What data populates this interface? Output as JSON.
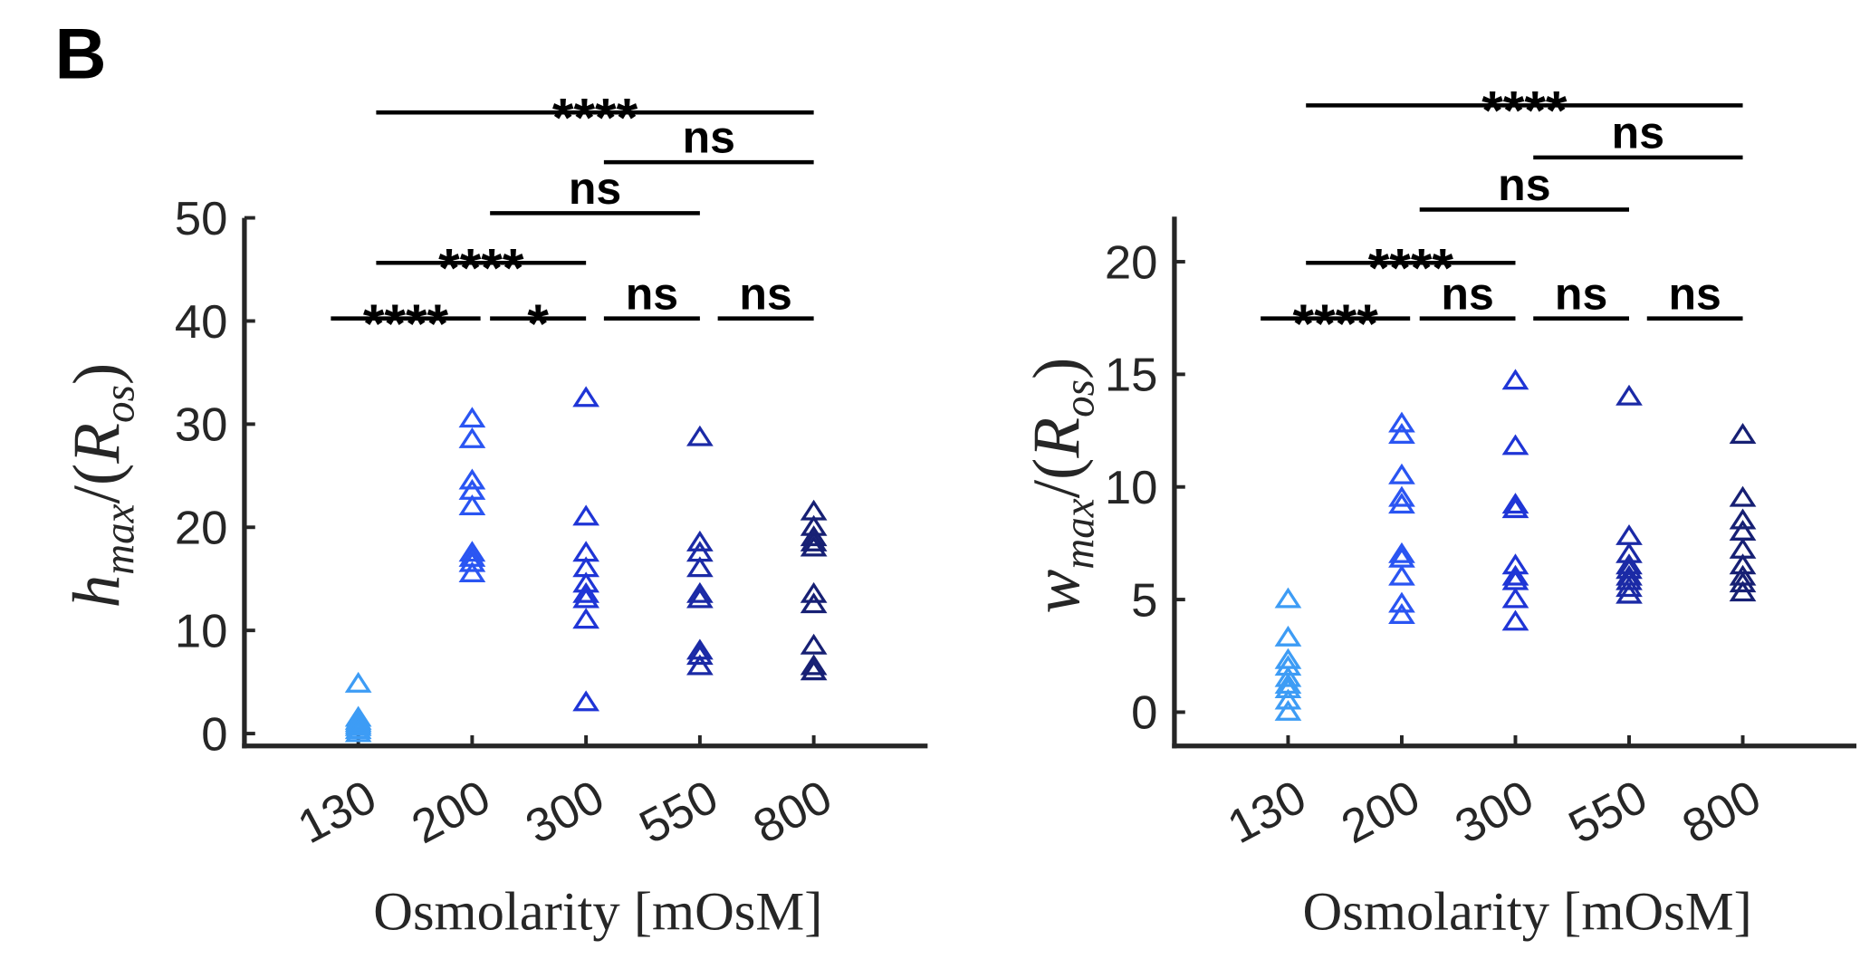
{
  "panel_label": "B",
  "chart_data": [
    {
      "type": "scatter",
      "ylabel": [
        "h",
        "max",
        "/(",
        "R",
        "os",
        ")"
      ],
      "xlabel": "Osmolarity [mOsM]",
      "categories": [
        "130",
        "200",
        "300",
        "550",
        "800"
      ],
      "colors": [
        "#3d9cf5",
        "#2a55f2",
        "#1f35d6",
        "#1b2aa6",
        "#172074"
      ],
      "points": [
        [
          4.8,
          1.5,
          1.2,
          1.0,
          0.6,
          0.3,
          0,
          0.8
        ],
        [
          30.5,
          28.5,
          24.5,
          23.5,
          22,
          17.5,
          17,
          16.5,
          15.5
        ],
        [
          32.5,
          21,
          17.5,
          16,
          14.5,
          13.5,
          13,
          11,
          3
        ],
        [
          28.7,
          18.5,
          17.5,
          16,
          13.5,
          13,
          8,
          7.5,
          6.5
        ],
        [
          21.5,
          20,
          19,
          18.5,
          18,
          13.5,
          12.5,
          8.5,
          6.5,
          6
        ]
      ],
      "ylim": [
        -1.2,
        50
      ],
      "yticks": [
        0,
        10,
        20,
        30,
        40,
        50
      ],
      "significance": [
        {
          "from": 0,
          "to": 1,
          "label": "****"
        },
        {
          "from": 1,
          "to": 2,
          "label": "*"
        },
        {
          "from": 2,
          "to": 3,
          "label": "ns"
        },
        {
          "from": 3,
          "to": 4,
          "label": "ns"
        },
        {
          "from": 0,
          "to": 2,
          "label": "****"
        },
        {
          "from": 1,
          "to": 3,
          "label": "ns"
        },
        {
          "from": 2,
          "to": 4,
          "label": "ns"
        },
        {
          "from": 0,
          "to": 4,
          "label": "****"
        }
      ]
    },
    {
      "type": "scatter",
      "ylabel": [
        "w",
        "max",
        "/(",
        "R",
        "os",
        ")"
      ],
      "xlabel": "Osmolarity [mOsM]",
      "categories": [
        "130",
        "200",
        "300",
        "550",
        "800"
      ],
      "colors": [
        "#3d9cf5",
        "#2a55f2",
        "#1f35d6",
        "#1b2aa6",
        "#172074"
      ],
      "points": [
        [
          5,
          3.3,
          2.3,
          2,
          1.5,
          1.2,
          1,
          0.5,
          0
        ],
        [
          12.8,
          12.3,
          10.5,
          9.5,
          9.2,
          7,
          6.8,
          6,
          4.8,
          4.3
        ],
        [
          14.7,
          11.8,
          9.2,
          9,
          6.5,
          6,
          5.8,
          5,
          4
        ],
        [
          14,
          7.8,
          7,
          6.5,
          6.3,
          6,
          5.8,
          5.5,
          5.2
        ],
        [
          12.3,
          9.5,
          8.5,
          8,
          7.2,
          6.5,
          6,
          5.7,
          5.3
        ]
      ],
      "ylim": [
        -1.5,
        22
      ],
      "yticks": [
        0,
        5,
        10,
        15,
        20
      ],
      "significance": [
        {
          "from": 0,
          "to": 1,
          "label": "****"
        },
        {
          "from": 1,
          "to": 2,
          "label": "ns"
        },
        {
          "from": 2,
          "to": 3,
          "label": "ns"
        },
        {
          "from": 3,
          "to": 4,
          "label": "ns"
        },
        {
          "from": 0,
          "to": 2,
          "label": "****"
        },
        {
          "from": 1,
          "to": 3,
          "label": "ns"
        },
        {
          "from": 2,
          "to": 4,
          "label": "ns"
        },
        {
          "from": 0,
          "to": 4,
          "label": "****"
        }
      ]
    }
  ]
}
